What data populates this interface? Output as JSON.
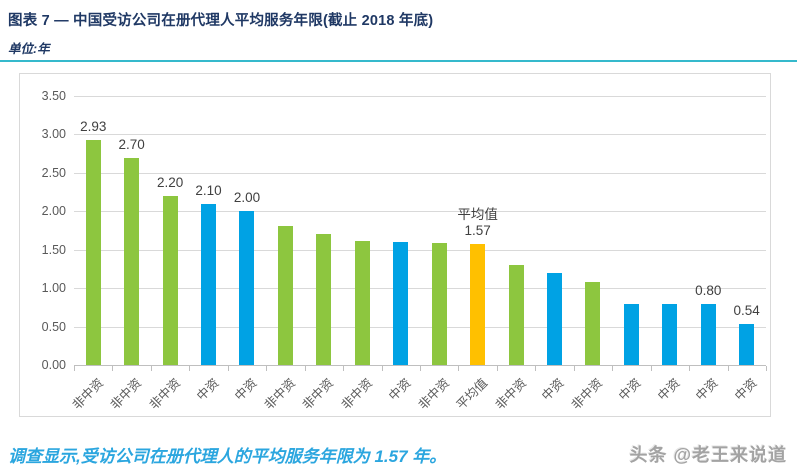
{
  "header": {
    "title": "图表 7 — 中国受访公司在册代理人平均服务年限(截止 2018 年底)",
    "unit_label": "单位:年"
  },
  "chart_data": {
    "type": "bar",
    "title": "中国受访公司在册代理人平均服务年限(截止 2018 年底)",
    "unit": "年",
    "ylim": [
      0,
      3.5
    ],
    "ytick_step": 0.5,
    "yticks": [
      "3.50",
      "3.00",
      "2.50",
      "2.00",
      "1.50",
      "1.00",
      "0.50",
      "0.00"
    ],
    "grid": true,
    "legend": "none",
    "average_value": 1.57,
    "bars": [
      {
        "group": "非中资",
        "value": 2.93,
        "label": "2.93"
      },
      {
        "group": "非中资",
        "value": 2.7,
        "label": "2.70"
      },
      {
        "group": "非中资",
        "value": 2.2,
        "label": "2.20"
      },
      {
        "group": "中资",
        "value": 2.1,
        "label": "2.10"
      },
      {
        "group": "中资",
        "value": 2.0,
        "label": "2.00"
      },
      {
        "group": "非中资",
        "value": 1.81,
        "label": ""
      },
      {
        "group": "非中资",
        "value": 1.7,
        "label": ""
      },
      {
        "group": "非中资",
        "value": 1.61,
        "label": ""
      },
      {
        "group": "中资",
        "value": 1.6,
        "label": ""
      },
      {
        "group": "非中资",
        "value": 1.59,
        "label": ""
      },
      {
        "group": "平均值",
        "value": 1.57,
        "label": "平均值\n1.57"
      },
      {
        "group": "非中资",
        "value": 1.3,
        "label": ""
      },
      {
        "group": "中资",
        "value": 1.2,
        "label": ""
      },
      {
        "group": "非中资",
        "value": 1.08,
        "label": ""
      },
      {
        "group": "中资",
        "value": 0.8,
        "label": ""
      },
      {
        "group": "中资",
        "value": 0.8,
        "label": ""
      },
      {
        "group": "中资",
        "value": 0.8,
        "label": "0.80"
      },
      {
        "group": "中资",
        "value": 0.54,
        "label": "0.54"
      }
    ],
    "colors": {
      "非中资": "#8dc63f",
      "中资": "#00a2e4",
      "平均值": "#ffc000"
    }
  },
  "footer": {
    "note": "调查显示,受访公司在册代理人的平均服务年限为 1.57 年。",
    "watermark": "头条 @老王来说道"
  }
}
